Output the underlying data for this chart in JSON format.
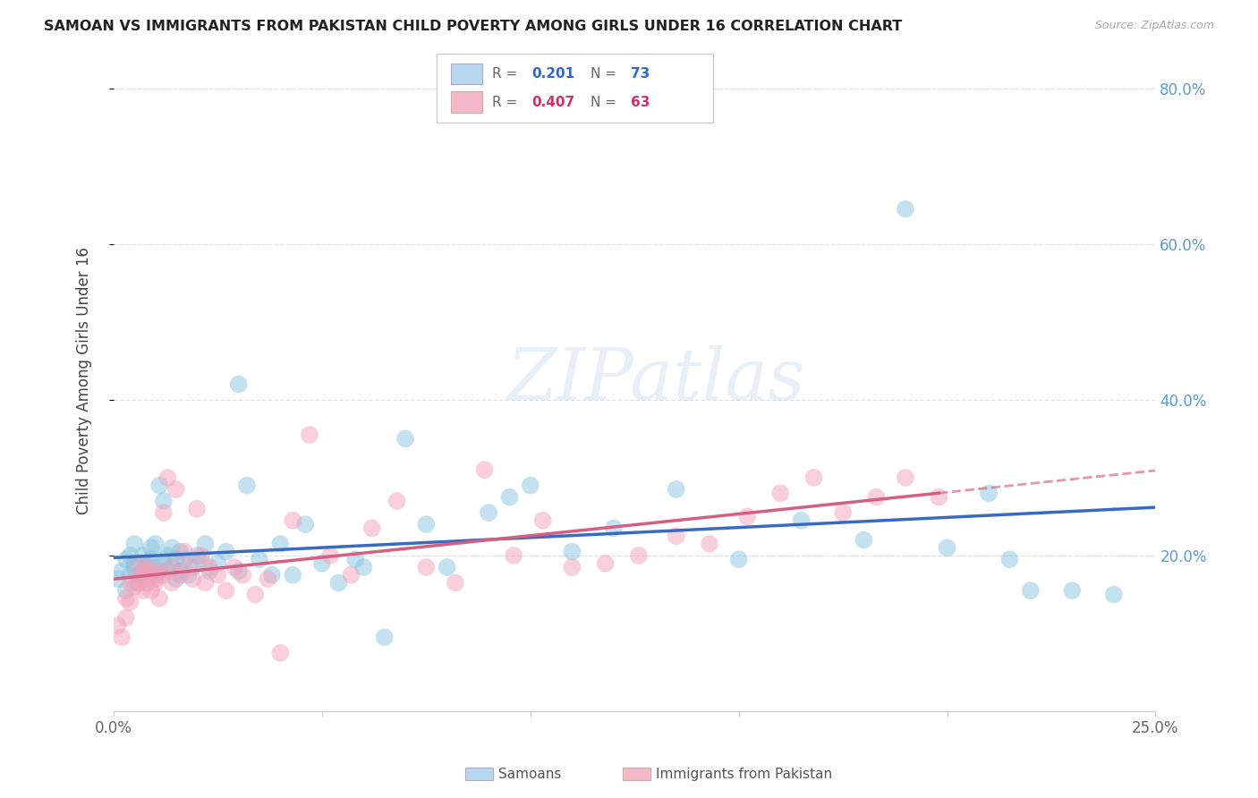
{
  "title": "SAMOAN VS IMMIGRANTS FROM PAKISTAN CHILD POVERTY AMONG GIRLS UNDER 16 CORRELATION CHART",
  "source": "Source: ZipAtlas.com",
  "ylabel": "Child Poverty Among Girls Under 16",
  "xlim": [
    0.0,
    0.25
  ],
  "ylim": [
    0.0,
    0.85
  ],
  "xtick_positions": [
    0.0,
    0.05,
    0.1,
    0.15,
    0.2,
    0.25
  ],
  "xticklabels": [
    "0.0%",
    "",
    "",
    "",
    "",
    "25.0%"
  ],
  "ytick_positions": [
    0.2,
    0.4,
    0.6,
    0.8
  ],
  "yticklabels": [
    "20.0%",
    "40.0%",
    "60.0%",
    "80.0%"
  ],
  "background_color": "#ffffff",
  "grid_color": "#e0e0e0",
  "blue_scatter_color": "#89c4e1",
  "pink_scatter_color": "#f4a0b8",
  "blue_line_color": "#3a6abf",
  "pink_line_color": "#d45f80",
  "blue_R": "0.201",
  "blue_N": "73",
  "pink_R": "0.407",
  "pink_N": "63",
  "samoans_x": [
    0.001,
    0.002,
    0.003,
    0.003,
    0.004,
    0.004,
    0.005,
    0.005,
    0.005,
    0.006,
    0.006,
    0.007,
    0.007,
    0.008,
    0.008,
    0.009,
    0.009,
    0.01,
    0.01,
    0.01,
    0.011,
    0.011,
    0.012,
    0.012,
    0.013,
    0.013,
    0.014,
    0.014,
    0.015,
    0.015,
    0.016,
    0.016,
    0.017,
    0.018,
    0.019,
    0.02,
    0.021,
    0.022,
    0.023,
    0.025,
    0.027,
    0.03,
    0.032,
    0.035,
    0.038,
    0.04,
    0.043,
    0.046,
    0.05,
    0.054,
    0.058,
    0.06,
    0.065,
    0.03,
    0.07,
    0.075,
    0.08,
    0.09,
    0.095,
    0.1,
    0.11,
    0.12,
    0.135,
    0.15,
    0.165,
    0.18,
    0.19,
    0.2,
    0.21,
    0.215,
    0.22,
    0.23,
    0.24
  ],
  "samoans_y": [
    0.17,
    0.18,
    0.195,
    0.155,
    0.2,
    0.175,
    0.19,
    0.185,
    0.215,
    0.175,
    0.165,
    0.18,
    0.2,
    0.17,
    0.19,
    0.21,
    0.195,
    0.185,
    0.175,
    0.215,
    0.29,
    0.18,
    0.27,
    0.195,
    0.18,
    0.2,
    0.185,
    0.21,
    0.17,
    0.195,
    0.205,
    0.18,
    0.195,
    0.175,
    0.185,
    0.2,
    0.195,
    0.215,
    0.18,
    0.19,
    0.205,
    0.18,
    0.29,
    0.195,
    0.175,
    0.215,
    0.175,
    0.24,
    0.19,
    0.165,
    0.195,
    0.185,
    0.095,
    0.42,
    0.35,
    0.24,
    0.185,
    0.255,
    0.275,
    0.29,
    0.205,
    0.235,
    0.285,
    0.195,
    0.245,
    0.22,
    0.645,
    0.21,
    0.28,
    0.195,
    0.155,
    0.155,
    0.15
  ],
  "pakistan_x": [
    0.001,
    0.002,
    0.003,
    0.003,
    0.004,
    0.004,
    0.005,
    0.006,
    0.006,
    0.007,
    0.007,
    0.008,
    0.008,
    0.009,
    0.009,
    0.01,
    0.01,
    0.011,
    0.011,
    0.012,
    0.012,
    0.013,
    0.014,
    0.014,
    0.015,
    0.016,
    0.017,
    0.018,
    0.019,
    0.02,
    0.021,
    0.022,
    0.023,
    0.025,
    0.027,
    0.029,
    0.031,
    0.034,
    0.037,
    0.04,
    0.043,
    0.047,
    0.052,
    0.057,
    0.062,
    0.068,
    0.075,
    0.082,
    0.089,
    0.096,
    0.103,
    0.11,
    0.118,
    0.126,
    0.135,
    0.143,
    0.152,
    0.16,
    0.168,
    0.175,
    0.183,
    0.19,
    0.198
  ],
  "pakistan_y": [
    0.11,
    0.095,
    0.145,
    0.12,
    0.165,
    0.14,
    0.16,
    0.185,
    0.165,
    0.175,
    0.155,
    0.165,
    0.185,
    0.155,
    0.18,
    0.17,
    0.165,
    0.145,
    0.18,
    0.175,
    0.255,
    0.3,
    0.185,
    0.165,
    0.285,
    0.175,
    0.205,
    0.185,
    0.17,
    0.26,
    0.2,
    0.165,
    0.185,
    0.175,
    0.155,
    0.185,
    0.175,
    0.15,
    0.17,
    0.075,
    0.245,
    0.355,
    0.2,
    0.175,
    0.235,
    0.27,
    0.185,
    0.165,
    0.31,
    0.2,
    0.245,
    0.185,
    0.19,
    0.2,
    0.225,
    0.215,
    0.25,
    0.28,
    0.3,
    0.255,
    0.275,
    0.3,
    0.275
  ]
}
